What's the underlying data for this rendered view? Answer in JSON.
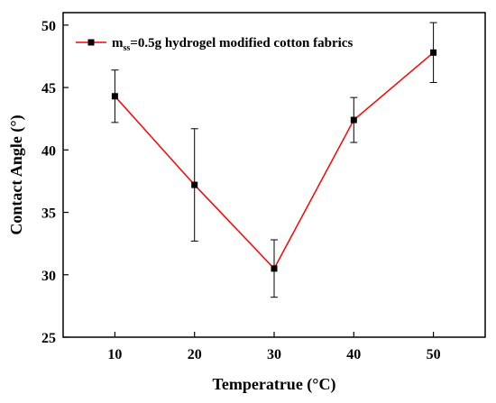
{
  "chart_data": {
    "type": "line",
    "xlabel": "Temperatrue (°C)",
    "ylabel": "Contact Angle (°)",
    "x_ticks": [
      "10",
      "20",
      "30",
      "40",
      "50"
    ],
    "y_ticks": [
      "25",
      "30",
      "35",
      "40",
      "45",
      "50"
    ],
    "xlim": [
      3.5,
      56.5
    ],
    "ylim": [
      25,
      51
    ],
    "grid": false,
    "legend_position": "top-left",
    "series": [
      {
        "name_prefix": "m",
        "name_subscript": "ss",
        "name_suffix": "=0.5g hydrogel modified cotton fabrics",
        "color": "#ff0000",
        "marker_color": "#000000",
        "marker": "square",
        "x": [
          10,
          20,
          30,
          40,
          50
        ],
        "y": [
          44.3,
          37.2,
          30.5,
          42.4,
          47.8
        ],
        "error": [
          2.1,
          4.5,
          2.3,
          1.8,
          2.4
        ]
      }
    ]
  }
}
